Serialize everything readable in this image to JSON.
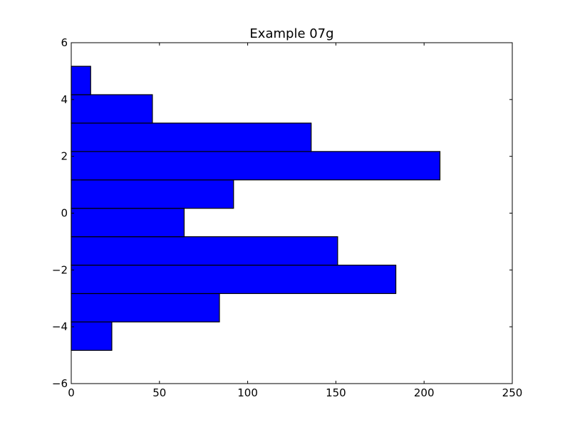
{
  "chart_data": {
    "type": "bar",
    "orientation": "horizontal",
    "title": "Example 07g",
    "xlabel": "",
    "ylabel": "",
    "xlim": [
      0,
      250
    ],
    "ylim": [
      -6,
      6
    ],
    "xticks": [
      0,
      50,
      100,
      150,
      200,
      250
    ],
    "yticks": [
      -6,
      -4,
      -2,
      0,
      2,
      4,
      6
    ],
    "xtick_labels": [
      "0",
      "50",
      "100",
      "150",
      "200",
      "250"
    ],
    "ytick_labels": [
      "−6",
      "−4",
      "−2",
      "0",
      "2",
      "4",
      "6"
    ],
    "grid": false,
    "bar_color": "#0000ff",
    "edge_color": "#000000",
    "bins": [
      {
        "y_start": -4.83,
        "y_end": -3.83,
        "value": 23
      },
      {
        "y_start": -3.83,
        "y_end": -2.83,
        "value": 84
      },
      {
        "y_start": -2.83,
        "y_end": -1.83,
        "value": 184
      },
      {
        "y_start": -1.83,
        "y_end": -0.83,
        "value": 151
      },
      {
        "y_start": -0.83,
        "y_end": 0.17,
        "value": 64
      },
      {
        "y_start": 0.17,
        "y_end": 1.17,
        "value": 92
      },
      {
        "y_start": 1.17,
        "y_end": 2.17,
        "value": 209
      },
      {
        "y_start": 2.17,
        "y_end": 3.17,
        "value": 136
      },
      {
        "y_start": 3.17,
        "y_end": 4.17,
        "value": 46
      },
      {
        "y_start": 4.17,
        "y_end": 5.17,
        "value": 11
      }
    ]
  }
}
